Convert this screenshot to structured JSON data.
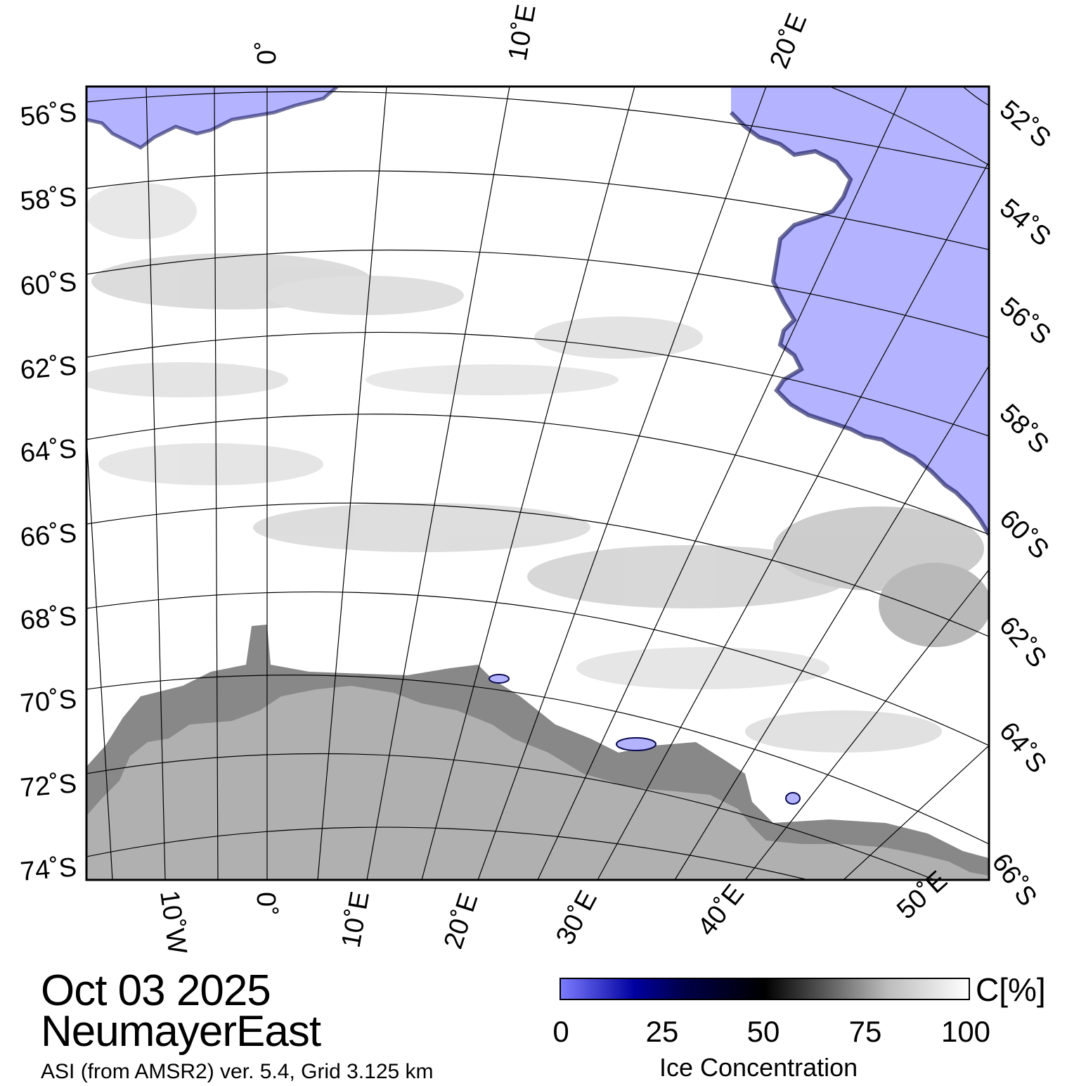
{
  "map": {
    "colors": {
      "ocean": "#b3b3ff",
      "ice": "#ffffff",
      "land": "#b0b0b0",
      "ice_shelf": "#888888",
      "grid": "#000000"
    },
    "lat_labels_left": [
      "56˚S",
      "58˚S",
      "60˚S",
      "62˚S",
      "64˚S",
      "66˚S",
      "68˚S",
      "70˚S",
      "72˚S",
      "74˚S"
    ],
    "lat_labels_right": [
      "52˚S",
      "54˚S",
      "56˚S",
      "58˚S",
      "60˚S",
      "62˚S",
      "64˚S",
      "66˚S"
    ],
    "lon_labels_top": [
      "0˚",
      "10˚E",
      "20˚E"
    ],
    "lon_labels_bottom": [
      "10˚W",
      "0˚",
      "10˚E",
      "20˚E",
      "30˚E",
      "40˚E",
      "50˚E"
    ]
  },
  "info": {
    "date": "Oct 03 2025",
    "region": "NeumayerEast",
    "source": "ASI (from AMSR2) ver. 5.4,  Grid 3.125 km"
  },
  "colorbar": {
    "unit": "C[%]",
    "title": "Ice Concentration",
    "ticks": [
      "0",
      "25",
      "50",
      "75",
      "100"
    ],
    "colors": [
      "#7c7cff",
      "#0000a0",
      "#000000",
      "#ffffff"
    ]
  }
}
